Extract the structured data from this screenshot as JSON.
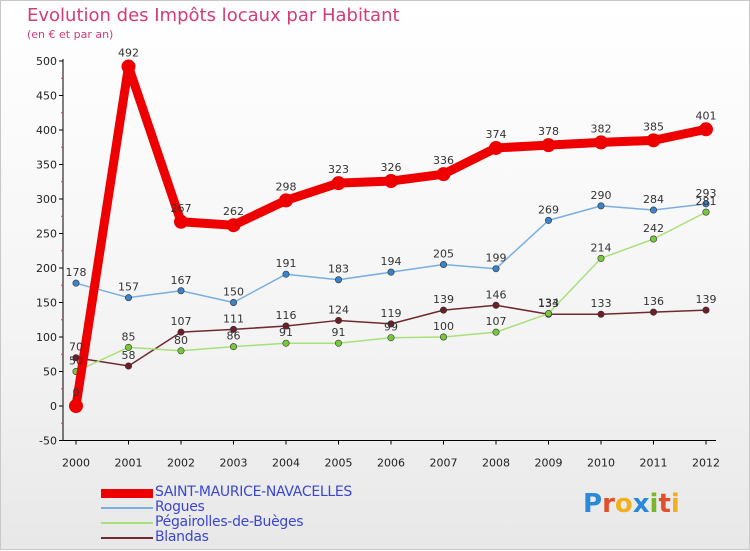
{
  "header": {
    "title": "Evolution des Impôts locaux par Habitant",
    "subtitle": "(en € et par an)"
  },
  "logo": {
    "text": "Proxiti",
    "letter_colors": [
      "#2a8ad8",
      "#e0502a",
      "#f0b020",
      "#2a8ad8",
      "#78b828",
      "#e0502a",
      "#f0b020"
    ]
  },
  "colors": {
    "title": "#d23c78",
    "legend_text": "#3c46d0",
    "axis": "#000000",
    "grid": "#999999",
    "minor_tick": "#d23c78"
  },
  "chart_data": {
    "type": "line",
    "title": "Evolution des Impôts locaux par Habitant",
    "subtitle": "(en € et par an)",
    "xlabel": "",
    "ylabel": "",
    "categories": [
      "2000",
      "2001",
      "2002",
      "2003",
      "2004",
      "2005",
      "2006",
      "2007",
      "2008",
      "2009",
      "2010",
      "2011",
      "2012"
    ],
    "yticks": [
      -50,
      0,
      50,
      100,
      150,
      200,
      250,
      300,
      350,
      400,
      450,
      500
    ],
    "ylim": [
      -50,
      500
    ],
    "grid": false,
    "legend_position": "bottom-left",
    "series": [
      {
        "name": "SAINT-MAURICE-NAVACELLES",
        "color": "#ee0000",
        "marker_color": "#ee0000",
        "values": [
          0,
          492,
          267,
          262,
          298,
          323,
          326,
          336,
          374,
          378,
          382,
          385,
          401
        ],
        "labels": [
          "0",
          "492",
          "267",
          "262",
          "298",
          "323",
          "326",
          "336",
          "374",
          "378",
          "382",
          "385",
          "401"
        ]
      },
      {
        "name": "Rogues",
        "color": "#7aaee0",
        "marker_color": "#3b82c8",
        "values": [
          178,
          157,
          167,
          150,
          191,
          183,
          194,
          205,
          199,
          269,
          290,
          284,
          293
        ],
        "labels": [
          "178",
          "157",
          "167",
          "150",
          "191",
          "183",
          "194",
          "205",
          "199",
          "269",
          "290",
          "284",
          "293"
        ]
      },
      {
        "name": "Pégairolles-de-Buèges",
        "color": "#a8e07a",
        "marker_color": "#78c83c",
        "values": [
          50,
          85,
          80,
          86,
          91,
          91,
          99,
          100,
          107,
          134,
          214,
          242,
          281
        ],
        "labels": [
          "50",
          "85",
          "80",
          "86",
          "91",
          "91",
          "99",
          "100",
          "107",
          "134",
          "214",
          "242",
          "281"
        ]
      },
      {
        "name": "Blandas",
        "color": "#6e2a30",
        "marker_color": "#6e1e28",
        "values": [
          70,
          58,
          107,
          111,
          116,
          124,
          119,
          139,
          146,
          133,
          133,
          136,
          139
        ],
        "labels": [
          "70",
          "58",
          "107",
          "111",
          "116",
          "124",
          "119",
          "139",
          "146",
          "133",
          "133",
          "136",
          "139"
        ]
      }
    ]
  }
}
